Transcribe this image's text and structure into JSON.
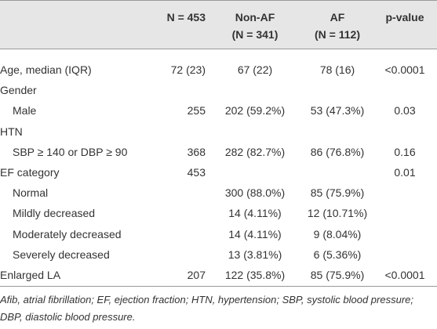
{
  "table": {
    "header": [
      [
        "N = 453"
      ],
      [
        "Non-AF",
        "(N = 341)"
      ],
      [
        "AF",
        "(N = 112)"
      ],
      [
        "p-value"
      ]
    ],
    "rows": [
      [
        "Age, median (IQR)",
        "72 (23)",
        "67 (22)",
        "78 (16)",
        "<0.0001"
      ],
      [
        "Gender",
        null,
        null,
        null,
        null
      ],
      [
        "Male",
        "255",
        "202 (59.2%)",
        "53 (47.3%)",
        "0.03"
      ],
      [
        "HTN",
        null,
        null,
        null,
        null
      ],
      [
        "SBP ≥ 140 or DBP ≥ 90",
        "368",
        "282 (82.7%)",
        "86 (76.8%)",
        "0.16"
      ],
      [
        "EF category",
        "453",
        null,
        null,
        "0.01"
      ],
      [
        "Normal",
        null,
        "300 (88.0%)",
        "85 (75.9%)",
        null
      ],
      [
        "Mildly decreased",
        null,
        "14 (4.11%)",
        "12 (10.71%)",
        null
      ],
      [
        "Moderately decreased",
        null,
        "14 (4.11%)",
        "9 (8.04%)",
        null
      ],
      [
        "Severely decreased",
        null,
        "13 (3.81%)",
        "6 (5.36%)",
        null
      ],
      [
        "Enlarged LA",
        "207",
        "122 (35.8%)",
        "85 (75.9%)",
        "<0.0001"
      ]
    ],
    "footnote": "Afib, atrial fibrillation; EF, ejection fraction; HTN, hypertension; SBP, systolic blood pressure; DBP, diastolic blood pressure."
  }
}
